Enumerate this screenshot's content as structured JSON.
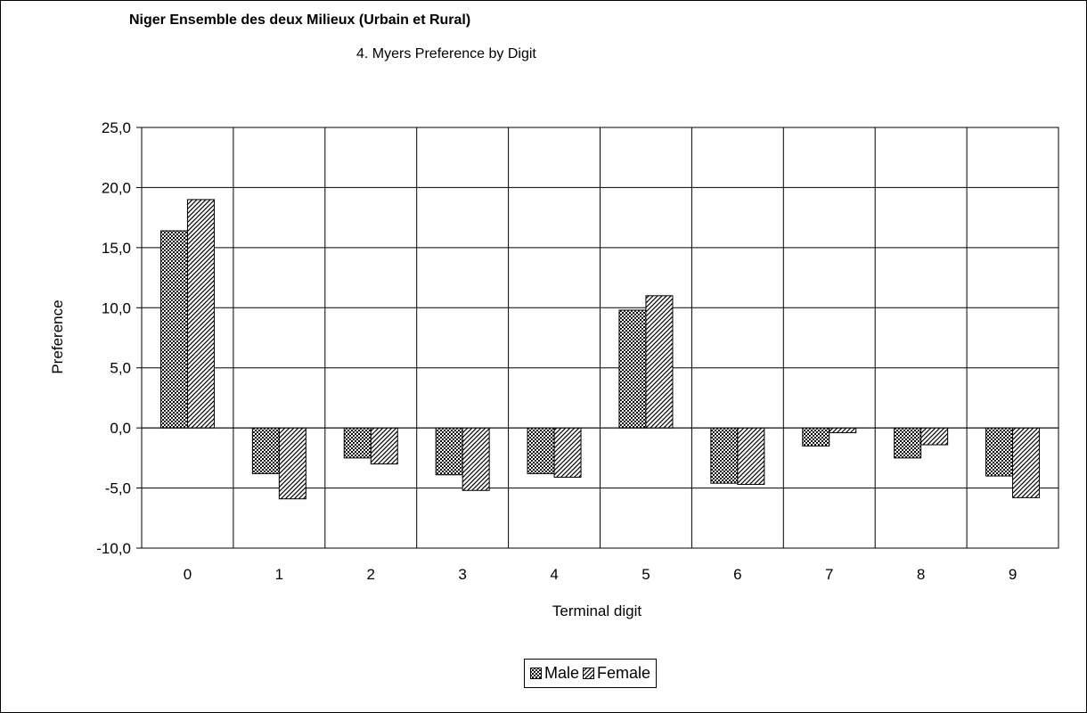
{
  "chart_data": {
    "type": "bar",
    "title": "Niger Ensemble des deux Milieux (Urbain et Rural)",
    "subtitle": "4.  Myers Preference by Digit",
    "xlabel": "Terminal digit",
    "ylabel": "Preference",
    "categories": [
      "0",
      "1",
      "2",
      "3",
      "4",
      "5",
      "6",
      "7",
      "8",
      "9"
    ],
    "series": [
      {
        "name": "Male",
        "values": [
          16.4,
          -3.8,
          -2.5,
          -3.9,
          -3.8,
          9.8,
          -4.6,
          -1.5,
          -2.5,
          -4.0
        ],
        "pattern": "crosshatch"
      },
      {
        "name": "Female",
        "values": [
          19.0,
          -5.9,
          -3.0,
          -5.2,
          -4.1,
          11.0,
          -4.7,
          -0.4,
          -1.4,
          -5.8
        ],
        "pattern": "diagonal"
      }
    ],
    "ylim": [
      -10,
      25
    ],
    "yticks": [
      "25,0",
      "20,0",
      "15,0",
      "10,0",
      "5,0",
      "0,0",
      "-5,0",
      "-10,0"
    ],
    "ytick_values": [
      25,
      20,
      15,
      10,
      5,
      0,
      -5,
      -10
    ],
    "grid": true,
    "legend_position": "bottom"
  }
}
